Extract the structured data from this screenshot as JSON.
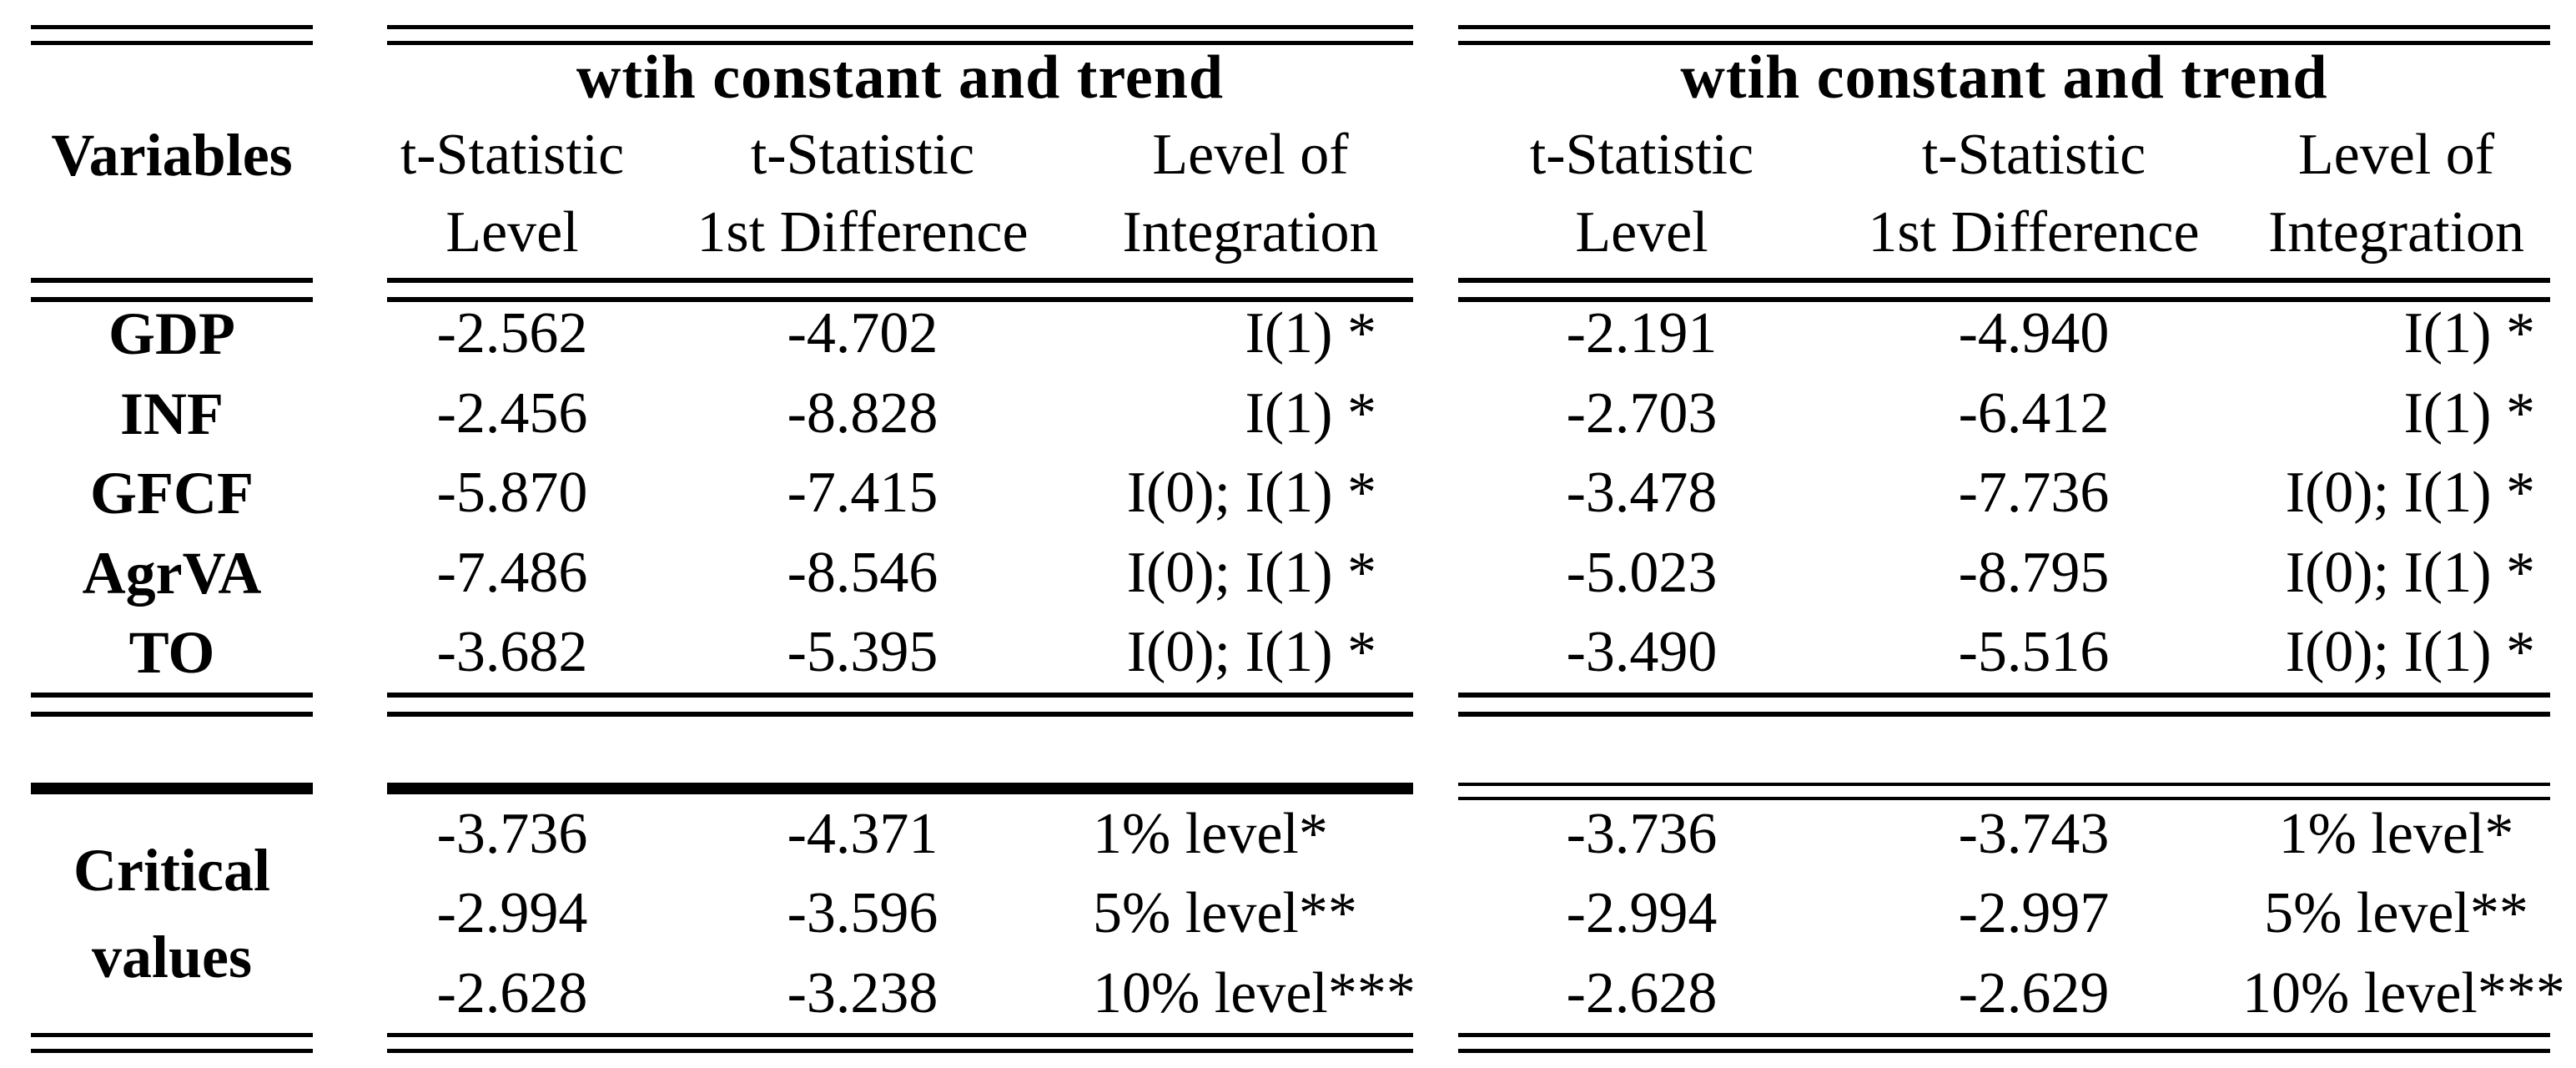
{
  "table": {
    "variables_header": "Variables",
    "variables": [
      "GDP",
      "INF",
      "GFCF",
      "AgrVA",
      "TO"
    ],
    "critical_label": [
      "Critical",
      "values"
    ],
    "panels": [
      {
        "title": "wtih constant and trend",
        "col_headers": [
          {
            "line1": "t-Statistic",
            "line2": "Level"
          },
          {
            "line1": "t-Statistic",
            "line2": "1st Difference"
          },
          {
            "line1": "Level of",
            "line2": "Integration"
          }
        ],
        "rows": [
          [
            "-2.562",
            "-4.702",
            "I(1) *"
          ],
          [
            "-2.456",
            "-8.828",
            "I(1) *"
          ],
          [
            "-5.870",
            "-7.415",
            "I(0); I(1) *"
          ],
          [
            "-7.486",
            "-8.546",
            "I(0); I(1) *"
          ],
          [
            "-3.682",
            "-5.395",
            "I(0); I(1) *"
          ]
        ],
        "critical_rows": [
          [
            "-3.736",
            "-4.371",
            "1% level*"
          ],
          [
            "-2.994",
            "-3.596",
            "5% level**"
          ],
          [
            "-2.628",
            "-3.238",
            "10% level***"
          ]
        ]
      },
      {
        "title": "wtih constant and trend",
        "col_headers": [
          {
            "line1": "t-Statistic",
            "line2": "Level"
          },
          {
            "line1": "t-Statistic",
            "line2": "1st Difference"
          },
          {
            "line1": "Level of",
            "line2": "Integration"
          }
        ],
        "rows": [
          [
            "-2.191",
            "-4.940",
            "I(1) *"
          ],
          [
            "-2.703",
            "-6.412",
            "I(1) *"
          ],
          [
            "-3.478",
            "-7.736",
            "I(0); I(1) *"
          ],
          [
            "-5.023",
            "-8.795",
            "I(0); I(1) *"
          ],
          [
            "-3.490",
            "-5.516",
            "I(0); I(1) *"
          ]
        ],
        "critical_rows": [
          [
            "-3.736",
            "-3.743",
            "1% level*"
          ],
          [
            "-2.994",
            "-2.997",
            "5% level**"
          ],
          [
            "-2.628",
            "-2.629",
            "10% level***"
          ]
        ]
      }
    ]
  }
}
